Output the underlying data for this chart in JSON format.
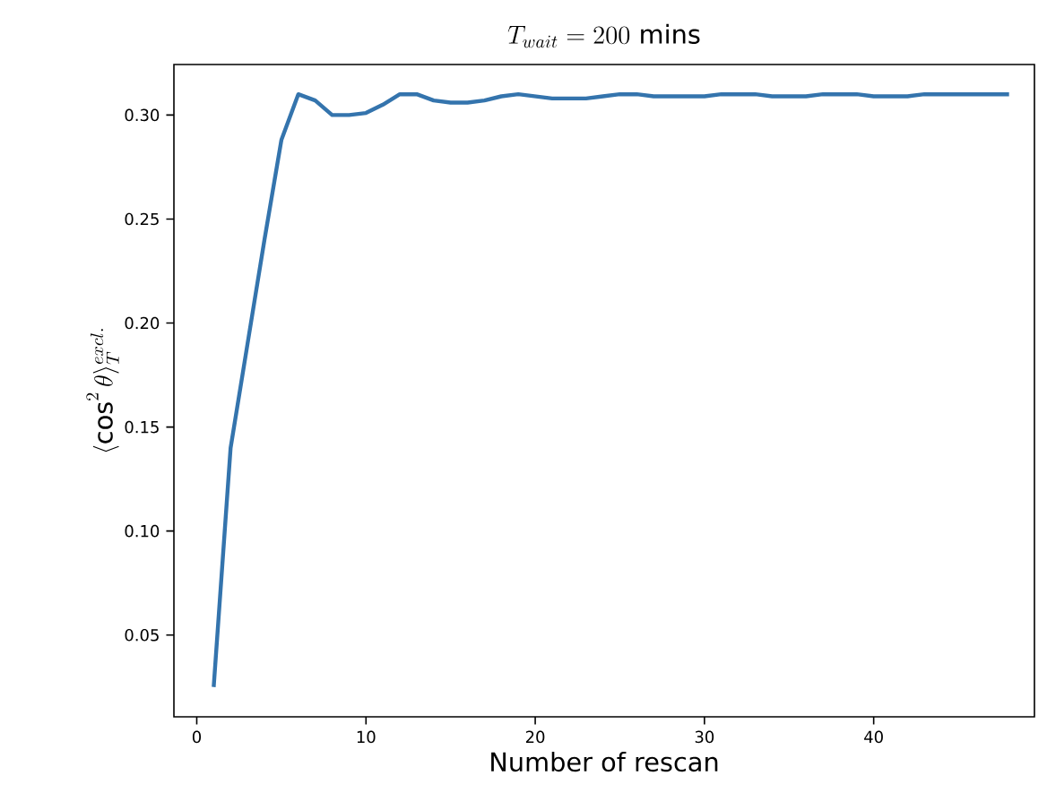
{
  "chart_data": {
    "type": "line",
    "title": "T_{wait} = 200\\ \\mathrm{mins}",
    "xlabel": "Number of rescan",
    "ylabel": "\\langle\\cos^2\\theta\\rangle_T^{excl.}",
    "x": [
      1,
      2,
      3,
      4,
      5,
      6,
      7,
      8,
      9,
      10,
      11,
      12,
      13,
      14,
      15,
      16,
      17,
      18,
      19,
      20,
      21,
      22,
      23,
      24,
      25,
      26,
      27,
      28,
      29,
      30,
      31,
      32,
      33,
      34,
      35,
      36,
      37,
      38,
      39,
      40,
      41,
      42,
      43,
      44,
      45,
      46,
      47,
      48
    ],
    "series": [
      {
        "color": "#3474ad",
        "values": [
          0.025,
          0.14,
          0.19,
          0.24,
          0.288,
          0.31,
          0.307,
          0.3,
          0.3,
          0.301,
          0.305,
          0.31,
          0.31,
          0.307,
          0.306,
          0.306,
          0.307,
          0.309,
          0.31,
          0.309,
          0.308,
          0.308,
          0.308,
          0.309,
          0.31,
          0.31,
          0.309,
          0.309,
          0.309,
          0.309,
          0.31,
          0.31,
          0.31,
          0.309,
          0.309,
          0.309,
          0.31,
          0.31,
          0.31,
          0.309,
          0.309,
          0.309,
          0.31,
          0.31,
          0.31,
          0.31,
          0.31,
          0.31
        ]
      }
    ],
    "xlim": [
      -1.35,
      49.5
    ],
    "ylim": [
      0.0107,
      0.3243
    ],
    "xticks": [
      0,
      10,
      20,
      30,
      40
    ],
    "yticks": [
      {
        "value": 0.05,
        "label": "0.05"
      },
      {
        "value": 0.1,
        "label": "0.10"
      },
      {
        "value": 0.15,
        "label": "0.15"
      },
      {
        "value": 0.2,
        "label": "0.20"
      },
      {
        "value": 0.25,
        "label": "0.25"
      },
      {
        "value": 0.3,
        "label": "0.30"
      }
    ],
    "grid": false,
    "marker": "none",
    "line_style": "solid"
  }
}
